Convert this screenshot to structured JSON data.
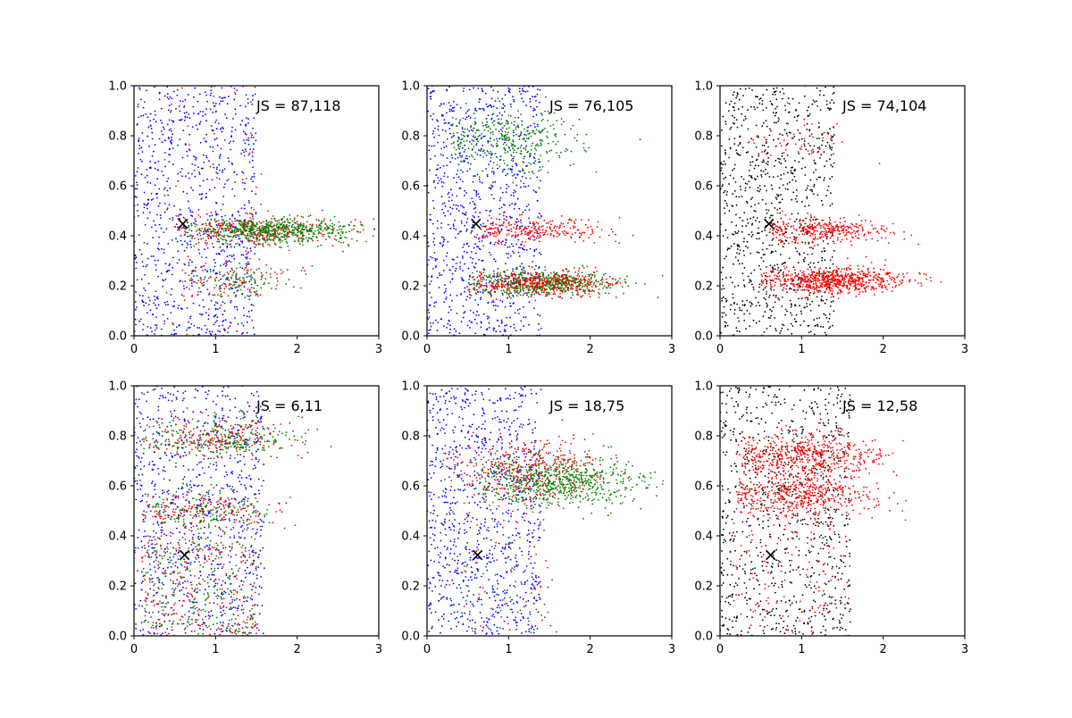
{
  "chart_data": [
    {
      "type": "scatter",
      "annotation": "JS = 87,118",
      "xlim": [
        0,
        3
      ],
      "ylim": [
        0,
        1
      ],
      "xticks": [
        "0",
        "1",
        "2",
        "3"
      ],
      "yticks": [
        "0.0",
        "0.2",
        "0.4",
        "0.6",
        "0.8",
        "1.0"
      ],
      "marker": {
        "symbol": "×",
        "x": 0.6,
        "y": 0.45
      },
      "series": [
        {
          "color": "#0000ff",
          "clusters": [
            {
              "n": 900,
              "xlim": [
                0.0,
                1.5
              ],
              "ylim": [
                0.0,
                1.0
              ]
            }
          ]
        },
        {
          "color": "#ff0000",
          "clusters": [
            {
              "n": 320,
              "xmean": 1.5,
              "xsd": 0.5,
              "xmin": 0.5,
              "ymean": 0.42,
              "ysd": 0.03
            },
            {
              "n": 90,
              "xmean": 1.2,
              "xsd": 0.4,
              "xmin": 0.5,
              "ymean": 0.22,
              "ysd": 0.04
            },
            {
              "n": 60,
              "xlim": [
                0.3,
                1.6
              ],
              "ylim": [
                0.0,
                1.0
              ]
            }
          ]
        },
        {
          "color": "#008000",
          "clusters": [
            {
              "n": 600,
              "xmean": 1.7,
              "xsd": 0.5,
              "xmin": 0.6,
              "ymean": 0.42,
              "ysd": 0.025
            },
            {
              "n": 110,
              "xmean": 1.3,
              "xsd": 0.35,
              "xmin": 0.5,
              "ymean": 0.22,
              "ysd": 0.03
            }
          ]
        }
      ]
    },
    {
      "type": "scatter",
      "annotation": "JS = 76,105",
      "xlim": [
        0,
        3
      ],
      "ylim": [
        0,
        1
      ],
      "xticks": [
        "0",
        "1",
        "2",
        "3"
      ],
      "yticks": [
        "0.0",
        "0.2",
        "0.4",
        "0.6",
        "0.8",
        "1.0"
      ],
      "marker": {
        "symbol": "×",
        "x": 0.6,
        "y": 0.45
      },
      "series": [
        {
          "color": "#0000ff",
          "clusters": [
            {
              "n": 950,
              "xlim": [
                0.0,
                1.4
              ],
              "ylim": [
                0.0,
                1.0
              ]
            }
          ]
        },
        {
          "color": "#008000",
          "clusters": [
            {
              "n": 330,
              "xmean": 1.0,
              "xsd": 0.45,
              "xmin": 0.3,
              "ymean": 0.78,
              "ysd": 0.06
            },
            {
              "n": 550,
              "xmean": 1.4,
              "xsd": 0.45,
              "xmin": 0.5,
              "ymean": 0.21,
              "ysd": 0.025
            }
          ]
        },
        {
          "color": "#ff0000",
          "clusters": [
            {
              "n": 260,
              "xmean": 1.3,
              "xsd": 0.45,
              "xmin": 0.6,
              "ymean": 0.42,
              "ysd": 0.025
            },
            {
              "n": 420,
              "xmean": 1.4,
              "xsd": 0.45,
              "xmin": 0.5,
              "ymean": 0.21,
              "ysd": 0.025
            }
          ]
        }
      ]
    },
    {
      "type": "scatter",
      "annotation": "JS = 74,104",
      "xlim": [
        0,
        3
      ],
      "ylim": [
        0,
        1
      ],
      "xticks": [
        "0",
        "1",
        "2",
        "3"
      ],
      "yticks": [
        "0.0",
        "0.2",
        "0.4",
        "0.6",
        "0.8",
        "1.0"
      ],
      "marker": {
        "symbol": "×",
        "x": 0.6,
        "y": 0.45
      },
      "series": [
        {
          "color": "#000000",
          "clusters": [
            {
              "n": 900,
              "xlim": [
                0.0,
                1.4
              ],
              "ylim": [
                0.0,
                1.0
              ]
            }
          ]
        },
        {
          "color": "#ff0000",
          "clusters": [
            {
              "n": 330,
              "xmean": 1.3,
              "xsd": 0.4,
              "xmin": 0.6,
              "ymean": 0.42,
              "ysd": 0.025
            },
            {
              "n": 700,
              "xmean": 1.4,
              "xsd": 0.45,
              "xmin": 0.5,
              "ymean": 0.22,
              "ysd": 0.025
            },
            {
              "n": 60,
              "xmean": 1.0,
              "xsd": 0.3,
              "xmin": 0.3,
              "ymean": 0.78,
              "ysd": 0.04
            }
          ]
        }
      ]
    },
    {
      "type": "scatter",
      "annotation": "JS = 6,11",
      "xlim": [
        0,
        3
      ],
      "ylim": [
        0,
        1
      ],
      "xticks": [
        "0",
        "1",
        "2",
        "3"
      ],
      "yticks": [
        "0.0",
        "0.2",
        "0.4",
        "0.6",
        "0.8",
        "1.0"
      ],
      "marker": {
        "symbol": "×",
        "x": 0.62,
        "y": 0.325
      },
      "series": [
        {
          "color": "#0000ff",
          "clusters": [
            {
              "n": 850,
              "xlim": [
                0.0,
                1.6
              ],
              "ylim": [
                0.0,
                1.0
              ]
            }
          ]
        },
        {
          "color": "#ff0000",
          "clusters": [
            {
              "n": 220,
              "xmean": 1.0,
              "xsd": 0.45,
              "xmin": 0.1,
              "ymean": 0.79,
              "ysd": 0.04
            },
            {
              "n": 180,
              "xmean": 0.9,
              "xsd": 0.45,
              "xmin": 0.1,
              "ymean": 0.5,
              "ysd": 0.04
            },
            {
              "n": 260,
              "xlim": [
                0.1,
                1.5
              ],
              "ylim": [
                0.0,
                0.4
              ]
            }
          ]
        },
        {
          "color": "#008000",
          "clusters": [
            {
              "n": 240,
              "xmean": 1.1,
              "xsd": 0.45,
              "xmin": 0.1,
              "ymean": 0.79,
              "ysd": 0.04
            },
            {
              "n": 160,
              "xmean": 0.9,
              "xsd": 0.4,
              "xmin": 0.1,
              "ymean": 0.5,
              "ysd": 0.04
            },
            {
              "n": 230,
              "xlim": [
                0.1,
                1.5
              ],
              "ylim": [
                0.0,
                0.4
              ]
            }
          ]
        }
      ]
    },
    {
      "type": "scatter",
      "annotation": "JS = 18,75",
      "xlim": [
        0,
        3
      ],
      "ylim": [
        0,
        1
      ],
      "xticks": [
        "0",
        "1",
        "2",
        "3"
      ],
      "yticks": [
        "0.0",
        "0.2",
        "0.4",
        "0.6",
        "0.8",
        "1.0"
      ],
      "marker": {
        "symbol": "×",
        "x": 0.62,
        "y": 0.325
      },
      "series": [
        {
          "color": "#0000ff",
          "clusters": [
            {
              "n": 900,
              "xlim": [
                0.0,
                1.4
              ],
              "ylim": [
                0.0,
                1.0
              ]
            }
          ]
        },
        {
          "color": "#ff0000",
          "clusters": [
            {
              "n": 420,
              "xmean": 1.2,
              "xsd": 0.45,
              "xmin": 0.2,
              "ymean": 0.66,
              "ysd": 0.07
            },
            {
              "n": 60,
              "xlim": [
                0.2,
                1.5
              ],
              "ylim": [
                0.0,
                0.5
              ]
            }
          ]
        },
        {
          "color": "#008000",
          "clusters": [
            {
              "n": 650,
              "xmean": 1.6,
              "xsd": 0.5,
              "xmin": 0.6,
              "ymean": 0.62,
              "ysd": 0.05
            },
            {
              "n": 50,
              "xlim": [
                0.3,
                1.6
              ],
              "ylim": [
                0.0,
                0.5
              ]
            }
          ]
        }
      ]
    },
    {
      "type": "scatter",
      "annotation": "JS = 12,58",
      "xlim": [
        0,
        3
      ],
      "ylim": [
        0,
        1
      ],
      "xticks": [
        "0",
        "1",
        "2",
        "3"
      ],
      "yticks": [
        "0.0",
        "0.2",
        "0.4",
        "0.6",
        "0.8",
        "1.0"
      ],
      "marker": {
        "symbol": "×",
        "x": 0.62,
        "y": 0.325
      },
      "series": [
        {
          "color": "#000000",
          "clusters": [
            {
              "n": 850,
              "xlim": [
                0.0,
                1.6
              ],
              "ylim": [
                0.0,
                1.0
              ]
            }
          ]
        },
        {
          "color": "#ff0000",
          "clusters": [
            {
              "n": 550,
              "xmean": 1.1,
              "xsd": 0.45,
              "xmin": 0.2,
              "ymean": 0.72,
              "ysd": 0.045
            },
            {
              "n": 480,
              "xmean": 1.0,
              "xsd": 0.45,
              "xmin": 0.2,
              "ymean": 0.56,
              "ysd": 0.045
            },
            {
              "n": 140,
              "xlim": [
                0.1,
                1.6
              ],
              "ylim": [
                0.0,
                0.45
              ]
            }
          ]
        }
      ]
    }
  ]
}
